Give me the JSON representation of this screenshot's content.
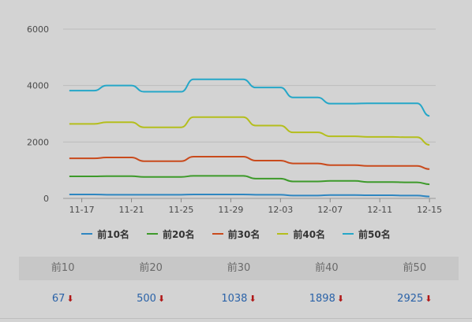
{
  "chart_data": {
    "type": "line",
    "x": [
      "11-16",
      "11-17",
      "11-18",
      "11-19",
      "11-20",
      "11-21",
      "11-22",
      "11-23",
      "11-24",
      "11-25",
      "11-26",
      "11-27",
      "11-28",
      "11-29",
      "11-30",
      "12-01",
      "12-02",
      "12-03",
      "12-04",
      "12-05",
      "12-06",
      "12-07",
      "12-08",
      "12-09",
      "12-10",
      "12-11",
      "12-12",
      "12-13",
      "12-14",
      "12-15"
    ],
    "tick_labels": [
      "11-17",
      "11-21",
      "11-25",
      "11-29",
      "12-03",
      "12-07",
      "12-11",
      "12-15"
    ],
    "y_ticks": [
      "0",
      "2000",
      "4000",
      "6000"
    ],
    "ylim": [
      0,
      6000
    ],
    "grid": true,
    "legend_position": "bottom",
    "series": [
      {
        "name": "前10名",
        "color": "#2e86c1",
        "values": [
          140,
          140,
          140,
          130,
          130,
          130,
          130,
          130,
          130,
          130,
          140,
          140,
          140,
          140,
          140,
          130,
          130,
          130,
          100,
          100,
          100,
          120,
          120,
          120,
          110,
          110,
          110,
          100,
          100,
          67
        ]
      },
      {
        "name": "前20名",
        "color": "#3d9a2a",
        "values": [
          780,
          780,
          780,
          790,
          790,
          790,
          760,
          760,
          760,
          760,
          800,
          800,
          800,
          800,
          800,
          700,
          700,
          700,
          600,
          600,
          600,
          620,
          620,
          620,
          580,
          580,
          580,
          570,
          570,
          500
        ]
      },
      {
        "name": "前30名",
        "color": "#c94a1c",
        "values": [
          1420,
          1420,
          1420,
          1450,
          1450,
          1450,
          1320,
          1320,
          1320,
          1320,
          1480,
          1480,
          1480,
          1480,
          1480,
          1340,
          1340,
          1340,
          1240,
          1240,
          1240,
          1180,
          1180,
          1180,
          1150,
          1150,
          1150,
          1150,
          1150,
          1038
        ]
      },
      {
        "name": "前40名",
        "color": "#b4be1c",
        "values": [
          2640,
          2640,
          2640,
          2700,
          2700,
          2700,
          2520,
          2520,
          2520,
          2520,
          2880,
          2880,
          2880,
          2880,
          2880,
          2580,
          2580,
          2580,
          2340,
          2340,
          2340,
          2200,
          2200,
          2200,
          2180,
          2180,
          2180,
          2170,
          2170,
          1898
        ]
      },
      {
        "name": "前50名",
        "color": "#25a7c8",
        "values": [
          3820,
          3820,
          3820,
          4000,
          4000,
          4000,
          3780,
          3780,
          3780,
          3780,
          4220,
          4220,
          4220,
          4220,
          4220,
          3930,
          3930,
          3930,
          3580,
          3580,
          3580,
          3360,
          3360,
          3360,
          3370,
          3370,
          3370,
          3370,
          3370,
          2925
        ]
      }
    ]
  },
  "summary": {
    "headers": [
      "前10",
      "前20",
      "前30",
      "前40",
      "前50"
    ],
    "values": [
      "67",
      "500",
      "1038",
      "1898",
      "2925"
    ],
    "trend_icon": "down-arrow-icon",
    "arrow_glyph": "⬇"
  },
  "colors": {
    "background": "#d3d3d3",
    "header_background": "#c7c7c7",
    "value_text": "#2a62a8",
    "down_arrow": "#b01818"
  }
}
